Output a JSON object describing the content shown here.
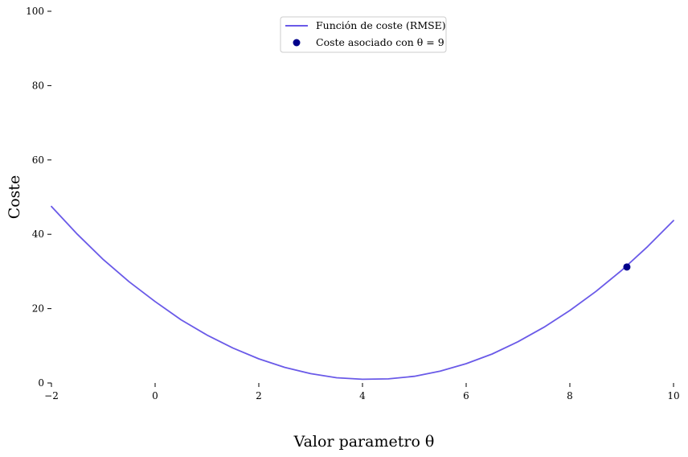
{
  "chart_data": {
    "type": "line",
    "xlabel": "Valor parametro θ",
    "ylabel": "Coste",
    "xlim": [
      -2,
      10
    ],
    "ylim": [
      0,
      100
    ],
    "x_ticks": [
      -2,
      0,
      2,
      4,
      6,
      8,
      10
    ],
    "y_ticks": [
      0,
      20,
      40,
      60,
      80,
      100
    ],
    "grid": false,
    "legend_position": "top-center",
    "series": [
      {
        "name": "Función de coste (RMSE)",
        "kind": "line",
        "color": "#6a5ae8",
        "x": [
          -2,
          -1.5,
          -1,
          -0.5,
          0,
          0.5,
          1,
          1.5,
          2,
          2.5,
          3,
          3.5,
          4,
          4.5,
          5,
          5.5,
          6,
          6.5,
          7,
          7.5,
          8,
          8.5,
          9,
          9.5,
          10
        ],
        "y": [
          47.5,
          40.0,
          33.2,
          27.2,
          21.9,
          17.0,
          12.9,
          9.4,
          6.5,
          4.2,
          2.5,
          1.4,
          1.0,
          1.1,
          1.8,
          3.2,
          5.2,
          7.8,
          11.1,
          15.0,
          19.5,
          24.6,
          30.3,
          36.7,
          43.7
        ]
      },
      {
        "name": "Coste asociado con θ = 9",
        "kind": "scatter",
        "color": "#00008b",
        "x": [
          9.1
        ],
        "y": [
          31.2
        ]
      }
    ]
  }
}
